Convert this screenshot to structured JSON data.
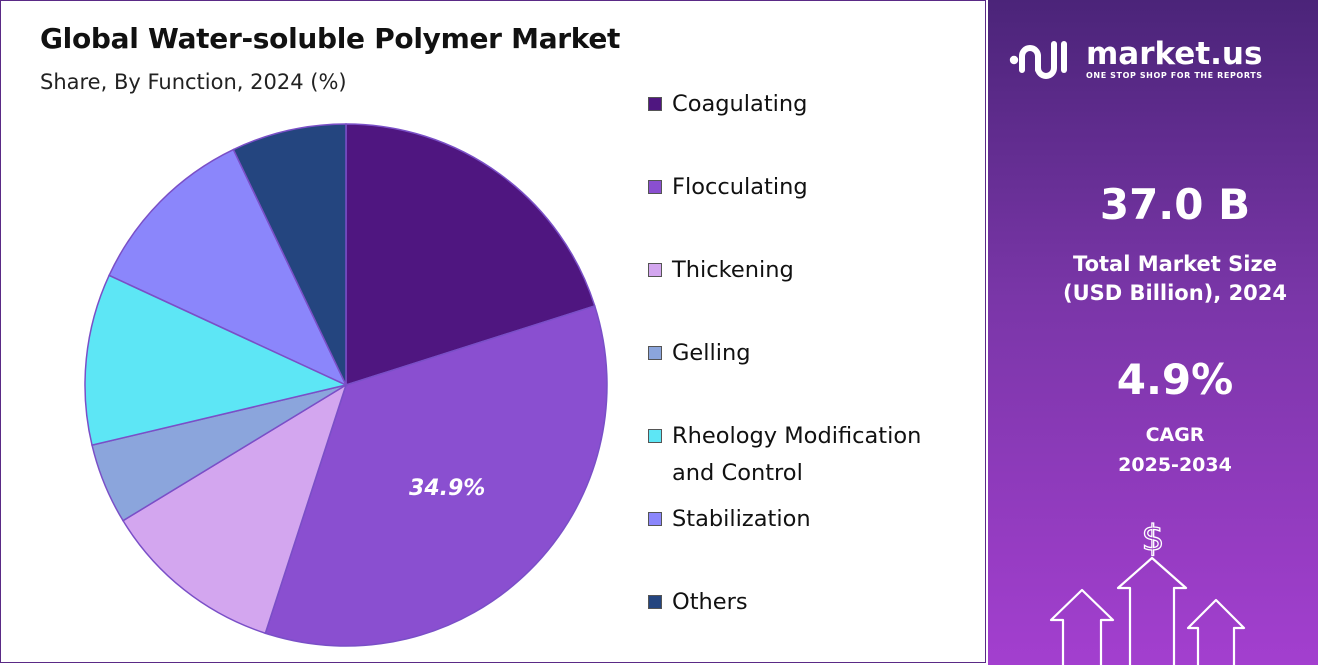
{
  "title": "Global Water-soluble Polymer Market",
  "subtitle": "Share, By Function, 2024 (%)",
  "brand": {
    "name": "market.us",
    "tagline": "ONE STOP SHOP FOR THE REPORTS"
  },
  "stats": {
    "market_size_value": "37.0 B",
    "market_size_label_line1": "Total Market Size",
    "market_size_label_line2": "(USD Billion), 2024",
    "cagr_value": "4.9%",
    "cagr_label_line1": "CAGR",
    "cagr_label_line2": "2025-2034"
  },
  "decor": {
    "currency_symbol": "$"
  },
  "chart_data": {
    "type": "pie",
    "title": "Global Water-soluble Polymer Market",
    "subtitle": "Share, By Function, 2024 (%)",
    "legend_position": "right",
    "slices": [
      {
        "label": "Coagulating",
        "value": 20.1,
        "color": "#4f1680"
      },
      {
        "label": "Flocculating",
        "value": 34.9,
        "color": "#8a4fd0",
        "data_label": "34.9%"
      },
      {
        "label": "Thickening",
        "value": 11.3,
        "color": "#d3a6ef"
      },
      {
        "label": "Gelling",
        "value": 5.0,
        "color": "#8ba5dc"
      },
      {
        "label": "Rheology Modification and Control",
        "value": 10.6,
        "color": "#5de6f5"
      },
      {
        "label": "Stabilization",
        "value": 11.0,
        "color": "#8b86fb"
      },
      {
        "label": "Others",
        "value": 7.1,
        "color": "#24457f"
      }
    ]
  }
}
